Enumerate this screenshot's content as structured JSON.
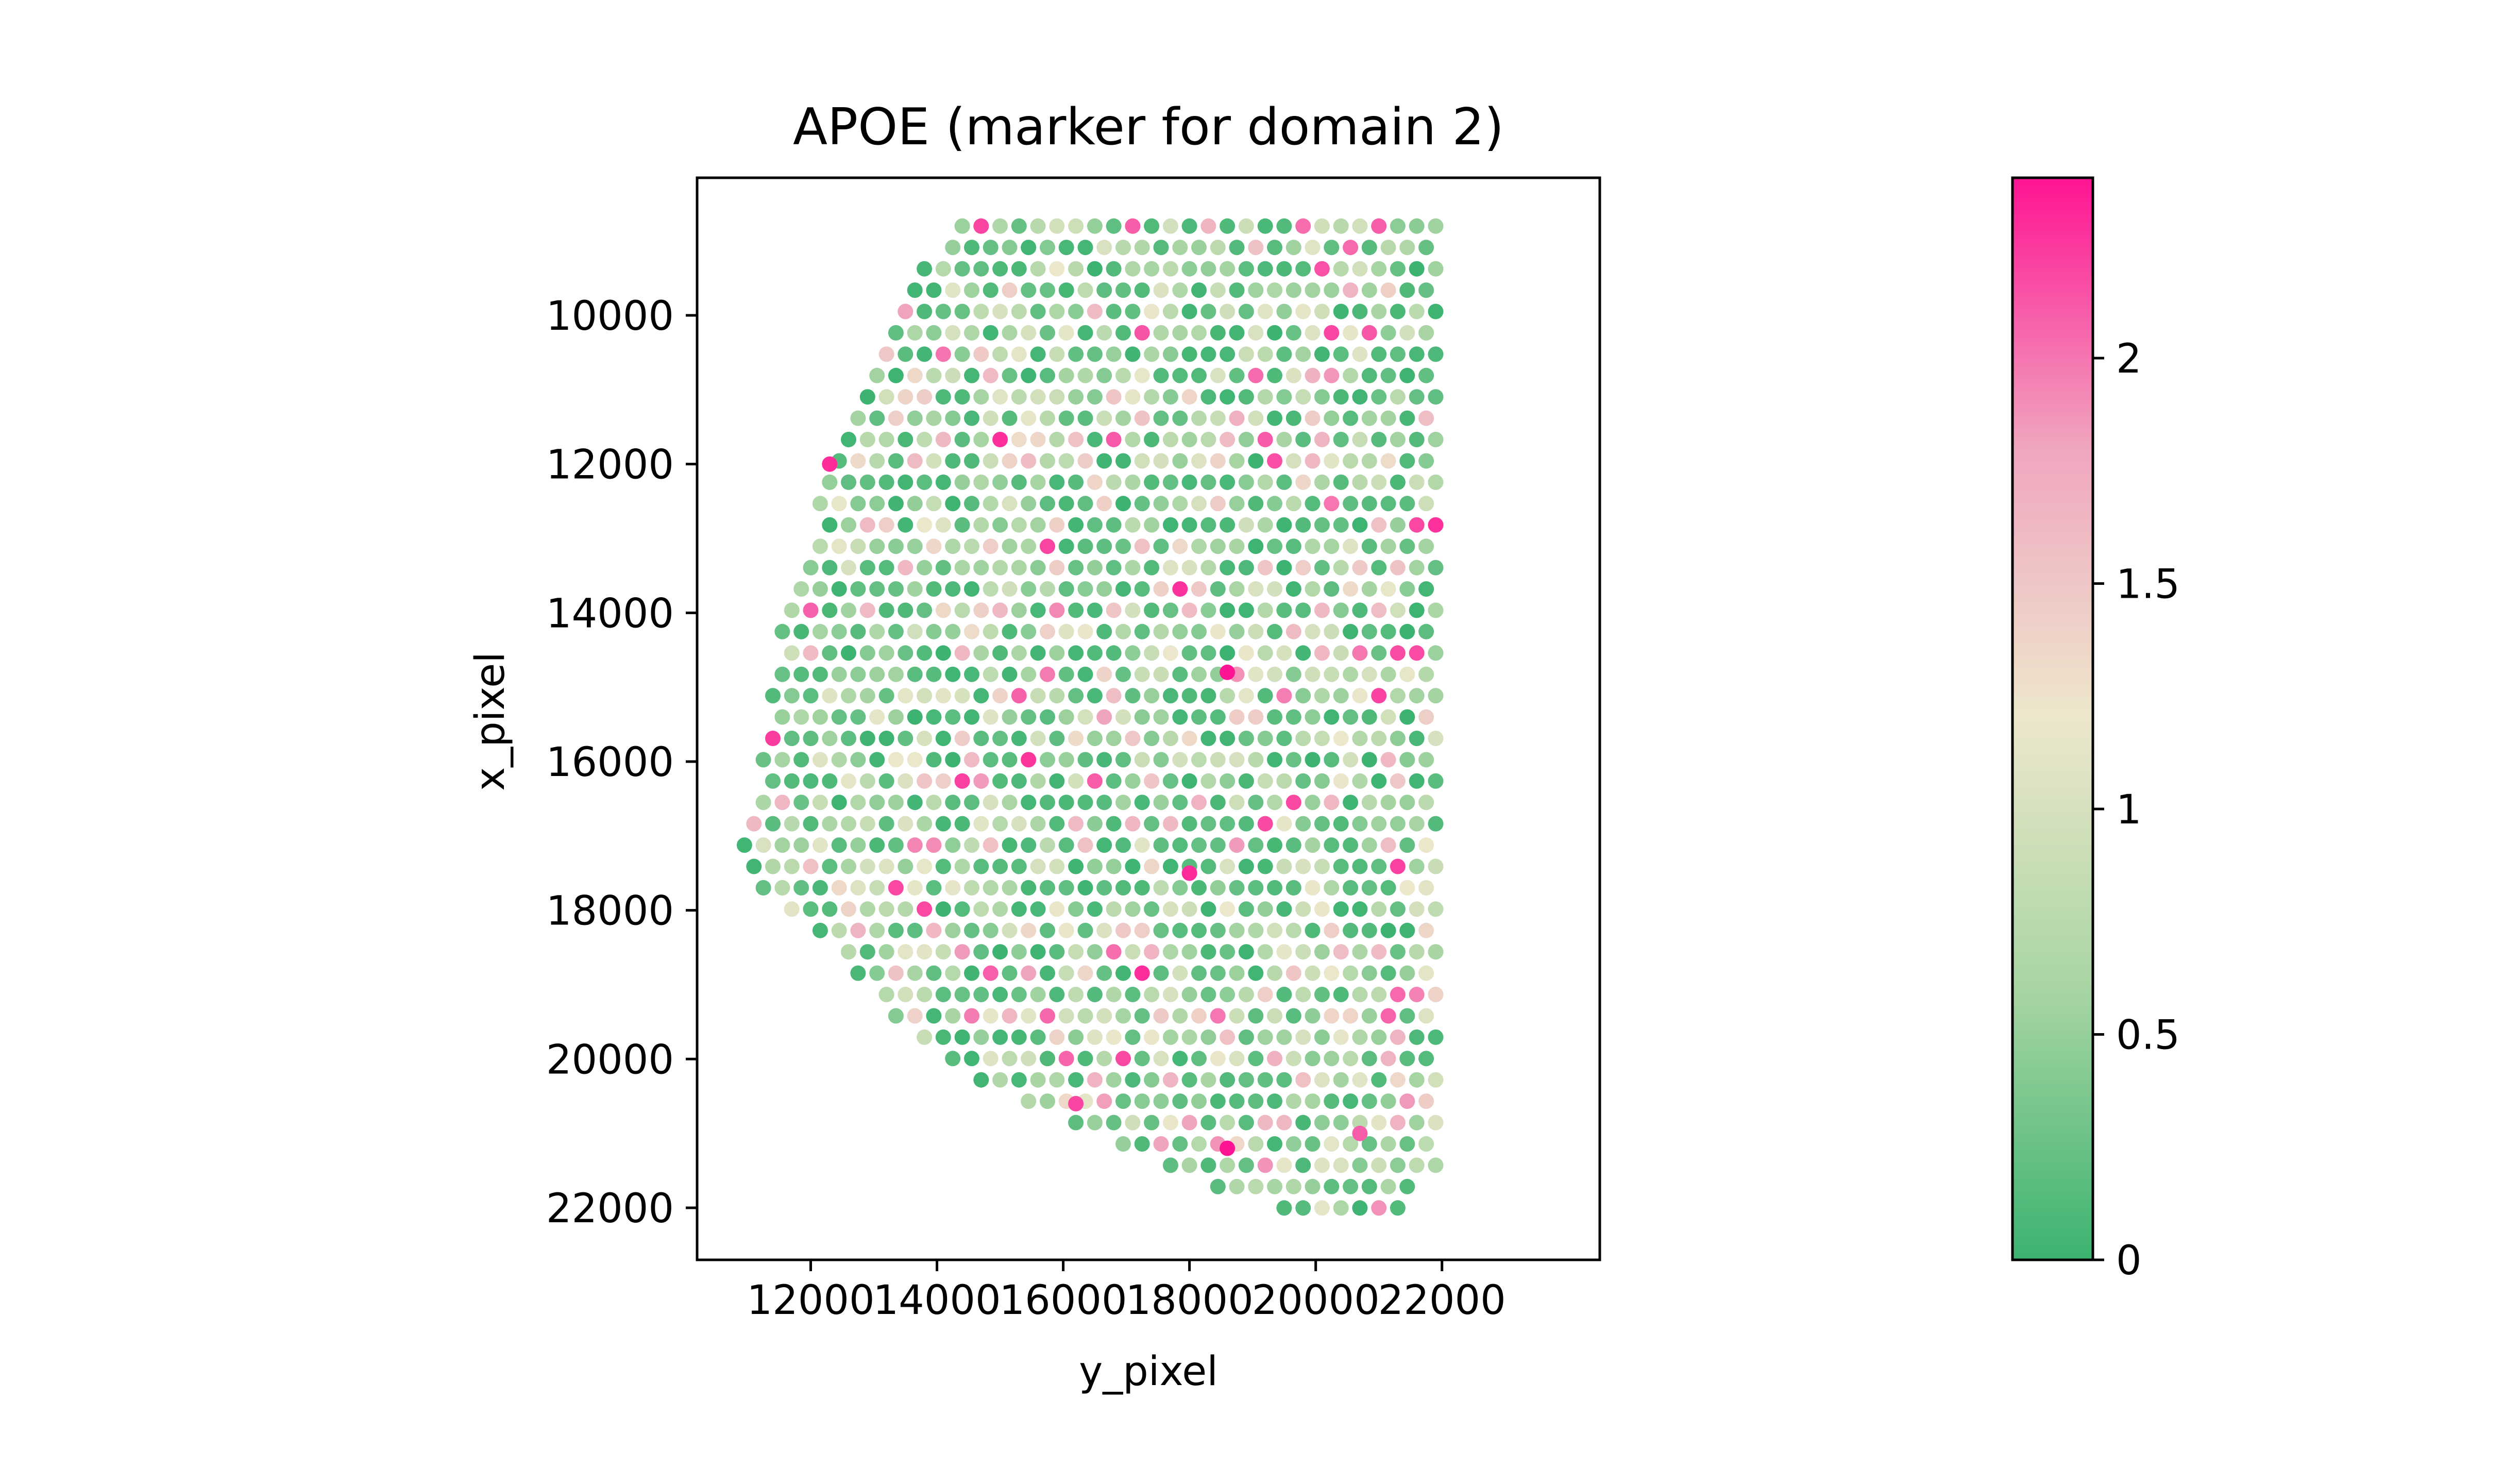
{
  "chart_data": {
    "type": "scatter",
    "title": "APOE (marker for domain 2)",
    "xlabel": "y_pixel",
    "ylabel": "x_pixel",
    "xlim": [
      10200,
      24500
    ],
    "ylim": [
      22700,
      8150
    ],
    "y_inverted": true,
    "grid": false,
    "x_ticks": [
      12000,
      14000,
      16000,
      18000,
      20000,
      22000
    ],
    "x_tick_labels": [
      "12000",
      "14000",
      "16000",
      "18000",
      "20000",
      "22000"
    ],
    "y_ticks": [
      10000,
      12000,
      14000,
      16000,
      18000,
      20000,
      22000
    ],
    "y_tick_labels": [
      "10000",
      "12000",
      "14000",
      "16000",
      "18000",
      "20000",
      "22000"
    ],
    "spot_grid": {
      "x_start": 10800,
      "x_step": 300,
      "y_start": 8800,
      "y_step": 287,
      "row_offset": 150,
      "tissue_outline": [
        {
          "y": 8800,
          "x_min": 14200,
          "x_max": 21900
        },
        {
          "y": 10500,
          "x_min": 13000,
          "x_max": 21900
        },
        {
          "y": 12000,
          "x_min": 12300,
          "x_max": 21900
        },
        {
          "y": 14000,
          "x_min": 11600,
          "x_max": 21900
        },
        {
          "y": 16000,
          "x_min": 11200,
          "x_max": 21900
        },
        {
          "y": 17400,
          "x_min": 10800,
          "x_max": 21900
        },
        {
          "y": 18500,
          "x_min": 12300,
          "x_max": 21900
        },
        {
          "y": 19600,
          "x_min": 13500,
          "x_max": 21900
        },
        {
          "y": 20500,
          "x_min": 15000,
          "x_max": 21900
        },
        {
          "y": 21600,
          "x_min": 18000,
          "x_max": 21900
        },
        {
          "y": 22100,
          "x_min": 19800,
          "x_max": 21200
        }
      ],
      "value_distribution": "mostly 0-1 with scattered high values up to about 2.4"
    },
    "highlighted_points": [
      {
        "x": 14700,
        "y": 8800,
        "value": 2.2
      },
      {
        "x": 17100,
        "y": 8800,
        "value": 2.1
      },
      {
        "x": 21000,
        "y": 8800,
        "value": 2.1
      },
      {
        "x": 12300,
        "y": 12000,
        "value": 2.3
      },
      {
        "x": 18600,
        "y": 14800,
        "value": 2.4
      },
      {
        "x": 18000,
        "y": 17500,
        "value": 2.3
      },
      {
        "x": 16200,
        "y": 20600,
        "value": 2.2
      },
      {
        "x": 18600,
        "y": 21200,
        "value": 2.4
      },
      {
        "x": 20700,
        "y": 21000,
        "value": 2.1
      }
    ],
    "colorbar": {
      "vmin": 0,
      "vmax": 2.4,
      "ticks": [
        0,
        0.5,
        1,
        1.5,
        2
      ],
      "tick_labels": [
        "0",
        "0.5",
        "1",
        "1.5",
        "2"
      ],
      "colormap": [
        "#3CB371",
        "#A8D5A3",
        "#EDE7CC",
        "#F0A6BF",
        "#FF1493"
      ]
    }
  }
}
